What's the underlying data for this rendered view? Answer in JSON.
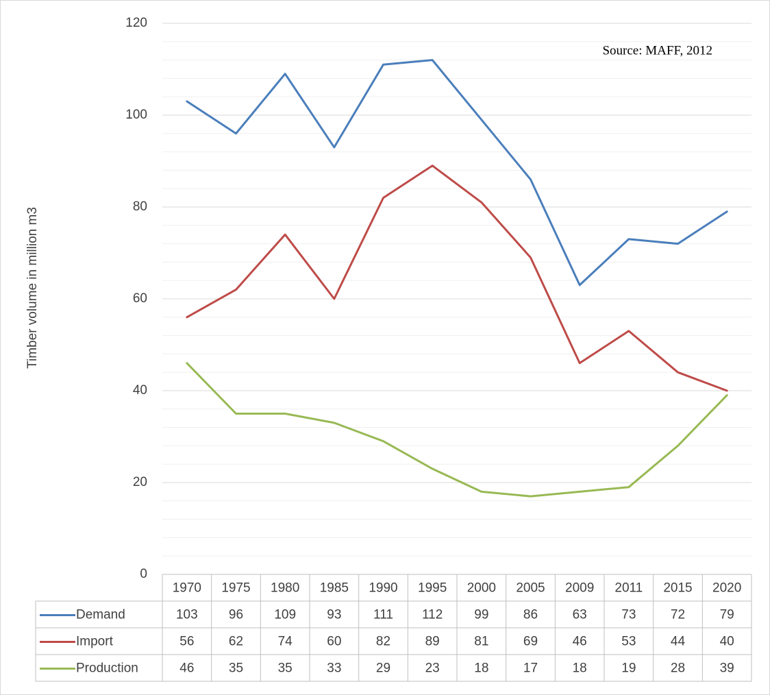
{
  "chart_data": {
    "type": "line",
    "annotation": "Source: MAFF, 2012",
    "y_axis_label": "Timber volume in million m3",
    "categories": [
      "1970",
      "1975",
      "1980",
      "1985",
      "1990",
      "1995",
      "2000",
      "2005",
      "2009",
      "2011",
      "2015",
      "2020"
    ],
    "series": [
      {
        "name": "Demand",
        "color": "#4a7ebb",
        "values": [
          103,
          96,
          109,
          93,
          111,
          112,
          99,
          86,
          63,
          73,
          72,
          79
        ]
      },
      {
        "name": "Import",
        "color": "#be4b48",
        "values": [
          56,
          62,
          74,
          60,
          82,
          89,
          81,
          69,
          46,
          53,
          44,
          40
        ]
      },
      {
        "name": "Production",
        "color": "#98b954",
        "values": [
          46,
          35,
          35,
          33,
          29,
          23,
          18,
          17,
          18,
          19,
          28,
          39
        ]
      }
    ],
    "ylim": [
      0,
      120
    ],
    "yticks": [
      0,
      20,
      40,
      60,
      80,
      100,
      120
    ],
    "grid": true,
    "minor_grid": true,
    "data_table": true
  }
}
